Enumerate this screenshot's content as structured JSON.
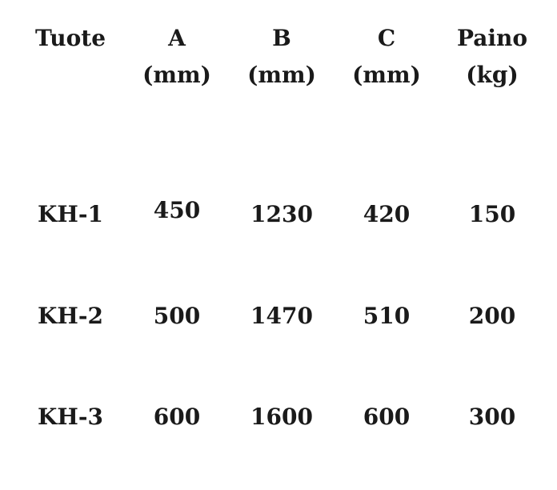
{
  "table": {
    "headers": [
      {
        "line1": "Tuote",
        "line2": ""
      },
      {
        "line1": "A",
        "line2": "(mm)"
      },
      {
        "line1": "B",
        "line2": "(mm)"
      },
      {
        "line1": "C",
        "line2": "(mm)"
      },
      {
        "line1": "Paino",
        "line2": "(kg)"
      }
    ],
    "rows": [
      [
        "KH-1",
        "450",
        "1230",
        "420",
        "150"
      ],
      [
        "KH-2",
        "500",
        "1470",
        "510",
        "200"
      ],
      [
        "KH-3",
        "600",
        "1600",
        "600",
        "300"
      ]
    ]
  }
}
